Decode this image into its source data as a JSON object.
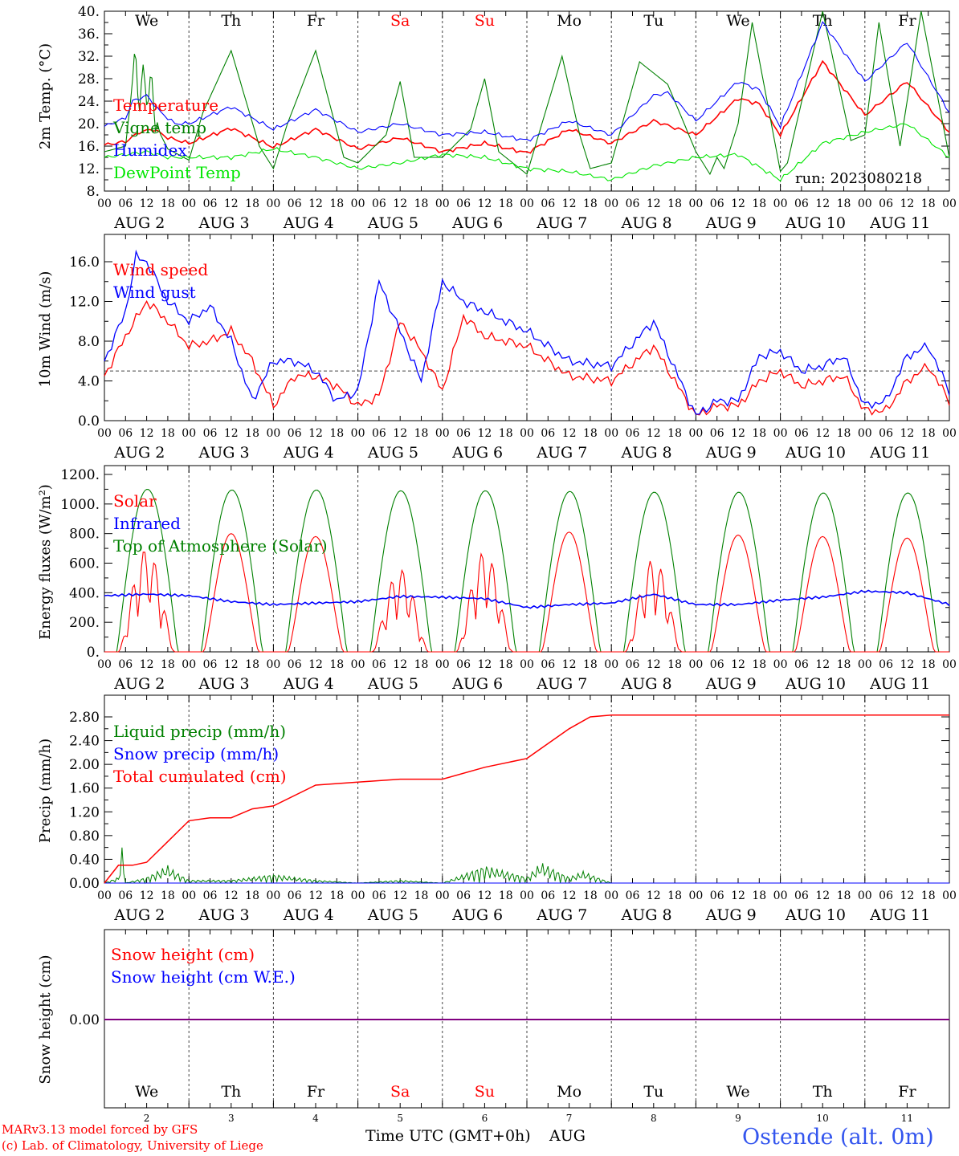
{
  "days": [
    "We",
    "Th",
    "Fr",
    "Sa",
    "Su",
    "Mo",
    "Tu",
    "We",
    "Th",
    "Fr"
  ],
  "weekend_days": [
    "Sa",
    "Su"
  ],
  "dates": [
    "AUG  2",
    "AUG  3",
    "AUG  4",
    "AUG  5",
    "AUG  6",
    "AUG  7",
    "AUG  8",
    "AUG  9",
    "AUG 10",
    "AUG 11"
  ],
  "bottom_day_numbers": [
    "2",
    "3",
    "4",
    "5",
    "6",
    "7",
    "8",
    "9",
    "10",
    "11"
  ],
  "hour_ticks": [
    "00",
    "06",
    "12",
    "18"
  ],
  "hour_end": "00",
  "run_label": "run: 2023080218",
  "footer": {
    "model": "MARv3.13 model forced by GFS",
    "lab": "(c) Lab. of Climatology, University of Liege",
    "xlabel": "Time UTC (GMT+0h)",
    "month": "AUG",
    "station": "Ostende (alt. 0m)"
  },
  "colors": {
    "red": "#ff0000",
    "green": "#008000",
    "blue": "#0000ff",
    "lime": "#00e600",
    "purple": "#800080",
    "grid": "#444444",
    "footer_blue": "#3355ee"
  },
  "chart_data": [
    {
      "type": "line",
      "ylabel": "2m Temp. (°C)",
      "ylim": [
        8,
        40
      ],
      "yticks": [
        "8.",
        "12.",
        "16.",
        "20.",
        "24.",
        "28.",
        "32.",
        "36.",
        "40."
      ],
      "x_unit": "hours since AUG 2 00 UTC",
      "series": [
        {
          "name": "Temperature",
          "color": "red",
          "x": [
            0,
            6,
            10,
            14,
            18,
            24,
            36,
            48,
            60,
            72,
            84,
            96,
            108,
            120,
            132,
            144,
            156,
            168,
            180,
            186,
            192,
            204,
            216,
            228,
            240
          ],
          "values": [
            16.2,
            16.8,
            18.5,
            19,
            17.5,
            16.5,
            19.2,
            15.8,
            19,
            15.5,
            17.5,
            15,
            16.5,
            14.8,
            19,
            16.5,
            20.5,
            18,
            24.5,
            23.5,
            18,
            31,
            21.5,
            27.5,
            18.5
          ]
        },
        {
          "name": "Vigne temp",
          "color": "green",
          "x": [
            0,
            6,
            9,
            10,
            11,
            12,
            13,
            14,
            16,
            18,
            24,
            28,
            36,
            44,
            48,
            52,
            60,
            68,
            72,
            80,
            84,
            88,
            96,
            104,
            108,
            112,
            120,
            130,
            135,
            138,
            144,
            152,
            160,
            168,
            172,
            174,
            176,
            180,
            184,
            192,
            194,
            204,
            212,
            216,
            220,
            226,
            232,
            240
          ],
          "values": [
            15,
            16,
            33,
            20,
            33,
            21,
            30,
            22,
            18,
            15.5,
            13.5,
            22,
            33,
            16,
            12,
            20,
            33,
            14,
            13,
            18,
            27.5,
            14,
            14,
            19,
            28,
            15,
            11,
            32,
            18,
            12,
            13,
            31,
            27,
            15,
            11,
            14,
            12,
            20,
            38,
            11.5,
            13,
            40,
            17,
            18,
            38,
            16,
            40,
            14
          ]
        },
        {
          "name": "Humidex",
          "color": "blue",
          "x": [
            0,
            6,
            8,
            12,
            16,
            20,
            24,
            36,
            48,
            60,
            72,
            84,
            96,
            108,
            120,
            132,
            144,
            156,
            160,
            168,
            180,
            186,
            192,
            204,
            216,
            228,
            240
          ],
          "values": [
            19.5,
            21,
            24,
            25,
            22,
            20,
            20,
            23,
            19,
            22.5,
            18.5,
            20,
            18,
            18.5,
            17,
            20.5,
            18,
            25,
            25.5,
            20.5,
            27.5,
            26,
            19.5,
            38,
            27.5,
            34.5,
            22
          ]
        },
        {
          "name": "DewPoint Temp",
          "color": "lime",
          "x": [
            0,
            6,
            12,
            18,
            24,
            36,
            48,
            60,
            72,
            84,
            96,
            108,
            120,
            132,
            144,
            156,
            168,
            180,
            192,
            204,
            216,
            228,
            240
          ],
          "values": [
            14,
            14.5,
            15,
            14,
            14,
            14,
            15.5,
            14,
            12,
            13,
            14.5,
            14,
            12,
            11.5,
            10,
            12.5,
            14,
            14.5,
            10,
            16.5,
            18.5,
            20,
            14
          ]
        }
      ],
      "legend": [
        "Temperature",
        "Vigne temp",
        "Humidex",
        "DewPoint Temp"
      ],
      "legend_colors": [
        "red",
        "green",
        "blue",
        "lime"
      ],
      "legend_placement": "left"
    },
    {
      "type": "line",
      "ylabel": "10m Wind (m/s)",
      "ylim": [
        0,
        18
      ],
      "yticks": [
        "0.0",
        "4.0",
        "8.0",
        "12.0",
        "16.0"
      ],
      "reference_line": 5,
      "series": [
        {
          "name": "Wind speed",
          "color": "red",
          "x": [
            0,
            6,
            12,
            18,
            24,
            30,
            36,
            42,
            48,
            54,
            60,
            66,
            72,
            78,
            84,
            90,
            96,
            102,
            108,
            114,
            120,
            132,
            144,
            156,
            168,
            174,
            180,
            186,
            192,
            198,
            204,
            210,
            216,
            222,
            228,
            234,
            240
          ],
          "values": [
            4.5,
            8.5,
            12,
            10,
            7.5,
            8,
            9,
            6,
            1.5,
            4.5,
            4.5,
            3.5,
            1.5,
            2.5,
            10,
            7,
            3,
            10.5,
            8.5,
            8,
            7.5,
            4.5,
            4,
            7.5,
            0.5,
            1.5,
            1.5,
            4,
            5,
            3.5,
            4,
            4.5,
            1,
            1,
            4,
            5.5,
            2
          ]
        },
        {
          "name": "Wind gust",
          "color": "blue",
          "x": [
            0,
            6,
            9,
            12,
            18,
            24,
            30,
            36,
            42,
            48,
            54,
            60,
            66,
            72,
            78,
            84,
            90,
            96,
            102,
            108,
            114,
            120,
            132,
            144,
            156,
            168,
            174,
            180,
            186,
            192,
            198,
            204,
            210,
            216,
            222,
            228,
            234,
            240
          ],
          "values": [
            6,
            11,
            16.5,
            16,
            12,
            10,
            11.5,
            8,
            2,
            6,
            6,
            5,
            2,
            3,
            14,
            9,
            4,
            14,
            12,
            11,
            10,
            9,
            6,
            5.5,
            10,
            0.5,
            2,
            2,
            6.5,
            7,
            5,
            5.5,
            6.5,
            1.5,
            2,
            6.5,
            7.5,
            3
          ]
        }
      ],
      "legend": [
        "Wind speed",
        "Wind gust"
      ],
      "legend_colors": [
        "red",
        "blue"
      ],
      "legend_placement": "left"
    },
    {
      "type": "line",
      "ylabel": "Energy fluxes (W/m²)",
      "ylim": [
        0,
        1200
      ],
      "yticks": [
        "0.",
        "200.",
        "400.",
        "600.",
        "800.",
        "1000.",
        "1200."
      ],
      "series": [
        {
          "name": "Solar",
          "color": "red",
          "peak_by_day": [
            700,
            800,
            780,
            560,
            680,
            810,
            630,
            790,
            780,
            770
          ]
        },
        {
          "name": "Infrared",
          "color": "blue",
          "x": [
            0,
            12,
            24,
            36,
            48,
            60,
            72,
            84,
            96,
            108,
            120,
            132,
            144,
            156,
            168,
            180,
            192,
            204,
            216,
            228,
            240
          ],
          "values": [
            380,
            390,
            380,
            340,
            320,
            330,
            340,
            375,
            370,
            360,
            300,
            320,
            330,
            390,
            320,
            320,
            350,
            370,
            410,
            400,
            320
          ]
        },
        {
          "name": "Top of Atmosphere (Solar)",
          "color": "green",
          "peak_by_day": [
            1100,
            1095,
            1095,
            1090,
            1090,
            1085,
            1080,
            1080,
            1075,
            1075
          ]
        }
      ],
      "legend": [
        "Solar",
        "Infrared",
        "Top of Atmosphere (Solar)"
      ],
      "legend_colors": [
        "red",
        "blue",
        "green"
      ],
      "legend_placement": "left"
    },
    {
      "type": "line",
      "ylabel": "Precip (mm/h)",
      "ylim": [
        0,
        3
      ],
      "yticks": [
        "0.00",
        "0.40",
        "0.80",
        "1.20",
        "1.60",
        "2.00",
        "2.40",
        "2.80"
      ],
      "series": [
        {
          "name": "Liquid precip (mm/h)",
          "color": "green",
          "x": [
            0,
            4,
            5,
            6,
            12,
            18,
            20,
            24,
            36,
            48,
            60,
            72,
            84,
            96,
            108,
            120,
            124,
            132,
            136,
            144
          ],
          "values": [
            0,
            0.1,
            0.6,
            0,
            0.1,
            0.3,
            0.2,
            0.05,
            0.05,
            0.15,
            0.05,
            0,
            0.05,
            0,
            0.3,
            0.1,
            0.35,
            0.1,
            0.2,
            0
          ]
        },
        {
          "name": "Snow precip (mm/h)",
          "color": "blue",
          "x": [
            0,
            240
          ],
          "values": [
            0,
            0
          ]
        },
        {
          "name": "Total cumulated (cm)",
          "color": "red",
          "x": [
            0,
            4,
            8,
            12,
            18,
            24,
            30,
            36,
            42,
            48,
            60,
            72,
            84,
            96,
            108,
            120,
            126,
            132,
            138,
            144,
            240
          ],
          "values": [
            0,
            0.3,
            0.3,
            0.35,
            0.7,
            1.05,
            1.1,
            1.1,
            1.25,
            1.3,
            1.65,
            1.7,
            1.75,
            1.75,
            1.95,
            2.1,
            2.35,
            2.6,
            2.8,
            2.83,
            2.83
          ]
        }
      ],
      "legend": [
        "Liquid precip (mm/h)",
        "Snow precip (mm/h)",
        "Total cumulated (cm)"
      ],
      "legend_colors": [
        "green",
        "blue",
        "red"
      ],
      "legend_placement": "left"
    },
    {
      "type": "line",
      "ylabel": "Snow height (cm)",
      "yticks": [
        "0.00"
      ],
      "series": [
        {
          "name": "Snow height (cm)",
          "color": "red",
          "x": [
            0,
            240
          ],
          "values": [
            0,
            0
          ]
        },
        {
          "name": "Snow height (cm W.E.)",
          "color": "blue",
          "x": [
            0,
            240
          ],
          "values": [
            0,
            0
          ]
        }
      ],
      "legend": [
        "Snow height (cm)",
        "Snow height (cm W.E.)"
      ],
      "legend_colors": [
        "red",
        "blue"
      ],
      "legend_placement": "top-left"
    }
  ]
}
